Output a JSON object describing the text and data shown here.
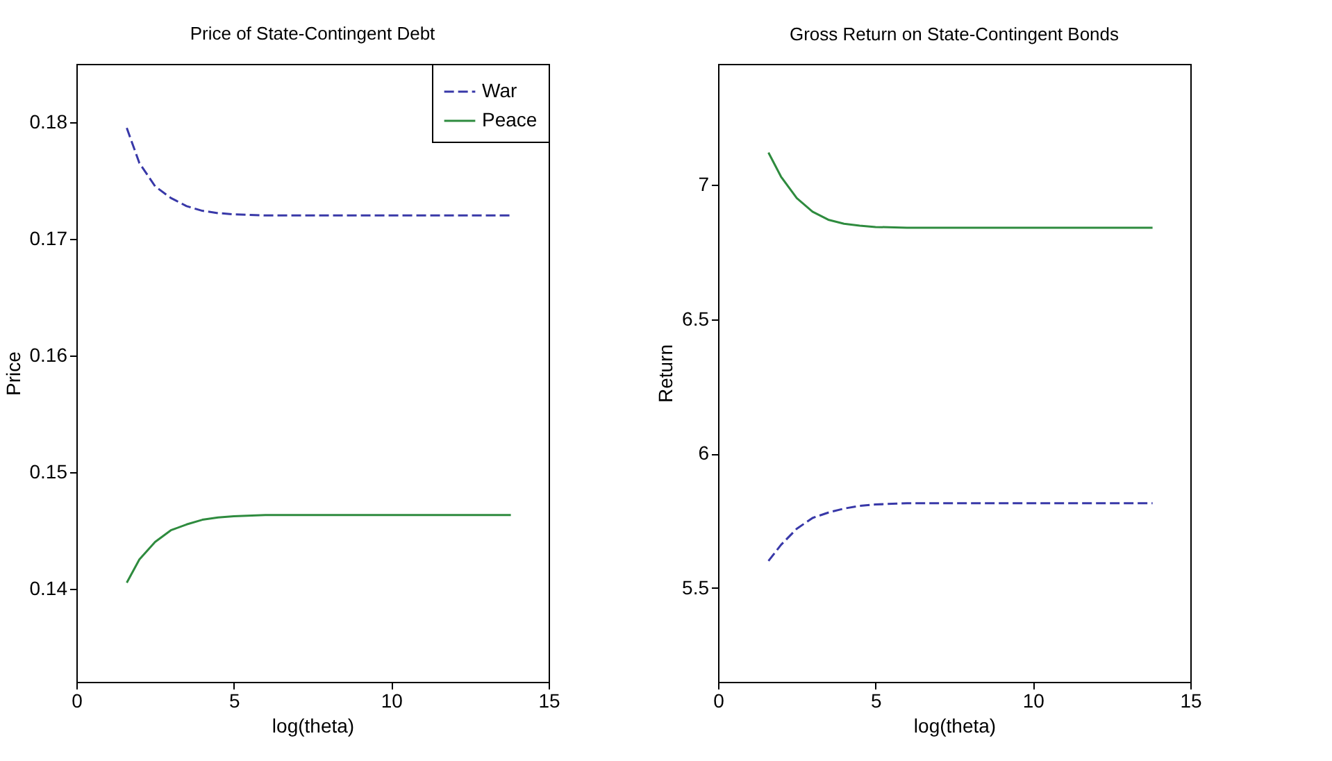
{
  "chart_data": [
    {
      "type": "line",
      "title": "Price of State-Contingent Debt",
      "xlabel": "log(theta)",
      "ylabel": "Price",
      "x": [
        1.6,
        2,
        2.5,
        3,
        3.5,
        4,
        4.5,
        5,
        6,
        8,
        10,
        12,
        13.8
      ],
      "series": [
        {
          "name": "War",
          "color": "#3838a8",
          "line_style": "dashed",
          "values": [
            0.1795,
            0.1765,
            0.1745,
            0.1735,
            0.1728,
            0.1724,
            0.1722,
            0.1721,
            0.172,
            0.172,
            0.172,
            0.172,
            0.172
          ]
        },
        {
          "name": "Peace",
          "color": "#2e8b3e",
          "line_style": "solid",
          "values": [
            0.1405,
            0.1425,
            0.144,
            0.145,
            0.1455,
            0.1459,
            0.1461,
            0.1462,
            0.1463,
            0.1463,
            0.1463,
            0.1463,
            0.1463
          ]
        }
      ],
      "xlim": [
        0,
        15
      ],
      "xticks": [
        0,
        5,
        10,
        15
      ],
      "ylim": [
        0.132,
        0.185
      ],
      "yticks": [
        0.14,
        0.15,
        0.16,
        0.17,
        0.18
      ],
      "legend": "top right"
    },
    {
      "type": "line",
      "title": "Gross Return on State-Contingent Bonds",
      "xlabel": "log(theta)",
      "ylabel": "Return",
      "x": [
        1.6,
        2,
        2.5,
        3,
        3.5,
        4,
        4.5,
        5,
        6,
        8,
        10,
        12,
        13.8
      ],
      "series": [
        {
          "color": "#2e8b3e",
          "line_style": "solid",
          "values": [
            7.12,
            7.03,
            6.95,
            6.9,
            6.87,
            6.855,
            6.848,
            6.843,
            6.84,
            6.84,
            6.84,
            6.84,
            6.84
          ]
        },
        {
          "color": "#3838a8",
          "line_style": "dashed",
          "values": [
            5.6,
            5.66,
            5.72,
            5.76,
            5.78,
            5.795,
            5.805,
            5.81,
            5.815,
            5.815,
            5.815,
            5.815,
            5.815
          ]
        }
      ],
      "xlim": [
        0,
        15
      ],
      "xticks": [
        0,
        5,
        10,
        15
      ],
      "ylim": [
        5.15,
        7.45
      ],
      "yticks": [
        5.5,
        6,
        6.5,
        7
      ]
    }
  ]
}
